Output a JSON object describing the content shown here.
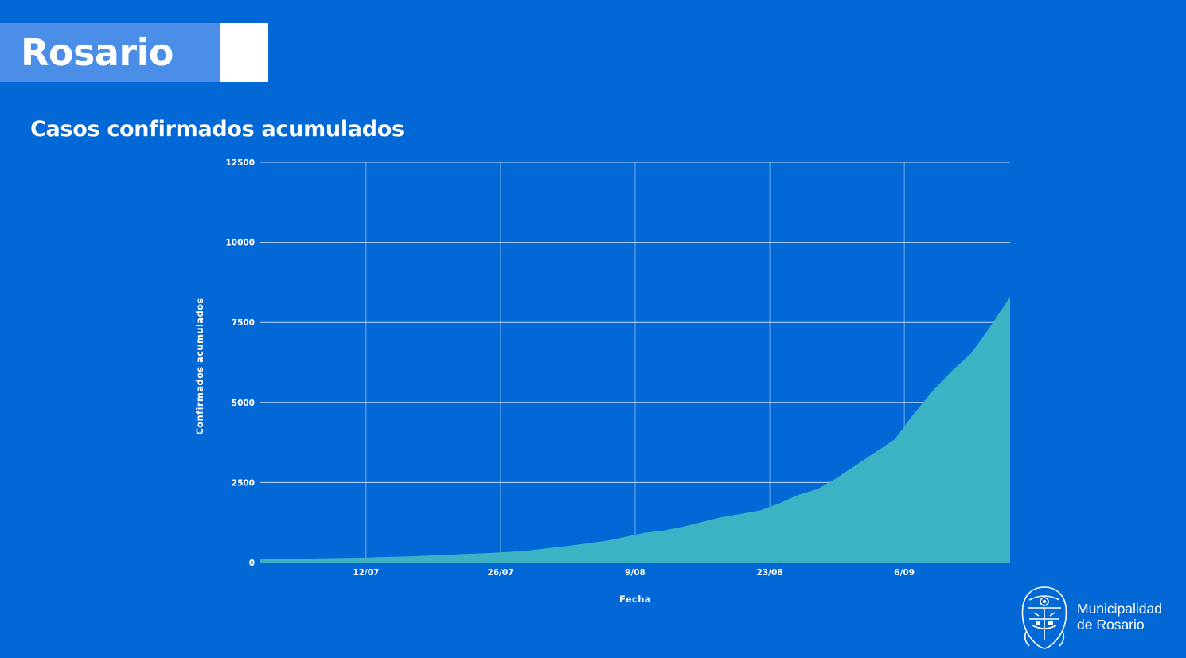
{
  "header": {
    "title": "Rosario"
  },
  "chart_title": "Casos confirmados acumulados",
  "chart_data": {
    "type": "area",
    "title": "Casos confirmados acumulados",
    "xlabel": "Fecha",
    "ylabel": "Confirmados acumulados",
    "ylim": [
      0,
      12500
    ],
    "yticks": [
      0,
      2500,
      5000,
      7500,
      10000,
      12500
    ],
    "xticks": [
      "12/07",
      "26/07",
      "9/08",
      "23/08",
      "6/09"
    ],
    "x_range": [
      "1/07",
      "17/09"
    ],
    "grid": true,
    "color": "#3cb3c5",
    "x": [
      "1/07",
      "3/07",
      "5/07",
      "7/07",
      "9/07",
      "11/07",
      "13/07",
      "15/07",
      "17/07",
      "19/07",
      "21/07",
      "23/07",
      "25/07",
      "27/07",
      "29/07",
      "31/07",
      "2/08",
      "4/08",
      "6/08",
      "8/08",
      "10/08",
      "12/08",
      "14/08",
      "16/08",
      "18/08",
      "20/08",
      "22/08",
      "24/08",
      "26/08",
      "28/08",
      "30/08",
      "1/09",
      "3/09",
      "5/09",
      "7/09",
      "9/09",
      "11/09",
      "13/09",
      "15/09",
      "17/09"
    ],
    "values": [
      110,
      115,
      120,
      130,
      140,
      150,
      165,
      180,
      200,
      225,
      250,
      275,
      300,
      335,
      380,
      450,
      520,
      600,
      680,
      800,
      930,
      1000,
      1120,
      1270,
      1420,
      1520,
      1630,
      1850,
      2120,
      2300,
      2650,
      3050,
      3450,
      3850,
      4650,
      5380,
      6000,
      6550,
      7400,
      8300
    ]
  },
  "logo": {
    "line1": "Municipalidad",
    "line2": "de Rosario",
    "icon": "coat-of-arms-icon"
  }
}
